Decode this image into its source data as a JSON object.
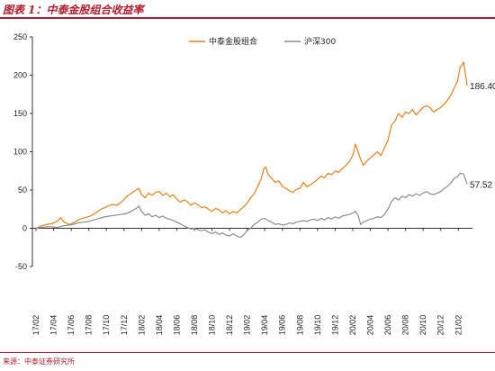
{
  "header": {
    "title": "图表 1：中泰金股组合收益率"
  },
  "footer": {
    "source": "来源：中泰证券研究所"
  },
  "chart_data": {
    "type": "line",
    "title": "图表 1：中泰金股组合收益率",
    "xlabel": "",
    "ylabel": "",
    "ylim": [
      -50,
      250
    ],
    "yticks": [
      -50,
      0,
      50,
      100,
      150,
      200,
      250
    ],
    "grid": false,
    "legend_position": "top-center",
    "x_tick_labels": [
      "17/02",
      "17/04",
      "17/06",
      "17/08",
      "17/10",
      "17/12",
      "18/02",
      "18/04",
      "18/06",
      "18/08",
      "18/10",
      "18/12",
      "19/02",
      "19/04",
      "19/06",
      "19/08",
      "19/10",
      "19/12",
      "20/02",
      "20/04",
      "20/06",
      "20/08",
      "20/10",
      "20/12",
      "21/02"
    ],
    "series": [
      {
        "name": "中泰金股组合",
        "color": "#e8801a",
        "end_label": "186.40",
        "points": [
          [
            0,
            0
          ],
          [
            0.3,
            3
          ],
          [
            0.6,
            5
          ],
          [
            0.9,
            6
          ],
          [
            1.2,
            9
          ],
          [
            1.4,
            14
          ],
          [
            1.6,
            8
          ],
          [
            1.9,
            5
          ],
          [
            2.2,
            8
          ],
          [
            2.5,
            12
          ],
          [
            2.8,
            14
          ],
          [
            3.1,
            16
          ],
          [
            3.4,
            20
          ],
          [
            3.7,
            25
          ],
          [
            4.0,
            28
          ],
          [
            4.3,
            31
          ],
          [
            4.6,
            30
          ],
          [
            4.9,
            35
          ],
          [
            5.1,
            40
          ],
          [
            5.3,
            44
          ],
          [
            5.5,
            47
          ],
          [
            5.7,
            50
          ],
          [
            5.85,
            52
          ],
          [
            6.0,
            44
          ],
          [
            6.2,
            40
          ],
          [
            6.4,
            46
          ],
          [
            6.6,
            43
          ],
          [
            6.8,
            47
          ],
          [
            7.0,
            48
          ],
          [
            7.2,
            43
          ],
          [
            7.4,
            46
          ],
          [
            7.6,
            41
          ],
          [
            7.8,
            44
          ],
          [
            8.0,
            38
          ],
          [
            8.2,
            34
          ],
          [
            8.4,
            37
          ],
          [
            8.6,
            35
          ],
          [
            8.8,
            30
          ],
          [
            9.0,
            33
          ],
          [
            9.2,
            31
          ],
          [
            9.4,
            27
          ],
          [
            9.6,
            28
          ],
          [
            9.8,
            25
          ],
          [
            10.0,
            22
          ],
          [
            10.2,
            26
          ],
          [
            10.4,
            24
          ],
          [
            10.6,
            20
          ],
          [
            10.8,
            23
          ],
          [
            11.0,
            19
          ],
          [
            11.2,
            22
          ],
          [
            11.4,
            20
          ],
          [
            11.6,
            24
          ],
          [
            11.8,
            28
          ],
          [
            12.0,
            33
          ],
          [
            12.2,
            40
          ],
          [
            12.4,
            45
          ],
          [
            12.6,
            55
          ],
          [
            12.8,
            65
          ],
          [
            12.95,
            78
          ],
          [
            13.05,
            80
          ],
          [
            13.2,
            70
          ],
          [
            13.4,
            65
          ],
          [
            13.6,
            60
          ],
          [
            13.8,
            62
          ],
          [
            14.0,
            55
          ],
          [
            14.2,
            52
          ],
          [
            14.4,
            49
          ],
          [
            14.6,
            47
          ],
          [
            14.8,
            51
          ],
          [
            15.0,
            52
          ],
          [
            15.2,
            60
          ],
          [
            15.4,
            54
          ],
          [
            15.6,
            57
          ],
          [
            15.8,
            60
          ],
          [
            16.0,
            64
          ],
          [
            16.2,
            68
          ],
          [
            16.4,
            66
          ],
          [
            16.6,
            72
          ],
          [
            16.8,
            70
          ],
          [
            17.0,
            75
          ],
          [
            17.2,
            73
          ],
          [
            17.4,
            78
          ],
          [
            17.6,
            82
          ],
          [
            17.8,
            87
          ],
          [
            18.0,
            95
          ],
          [
            18.15,
            110
          ],
          [
            18.3,
            100
          ],
          [
            18.45,
            90
          ],
          [
            18.6,
            82
          ],
          [
            18.8,
            88
          ],
          [
            19.0,
            92
          ],
          [
            19.2,
            96
          ],
          [
            19.4,
            100
          ],
          [
            19.6,
            95
          ],
          [
            19.8,
            105
          ],
          [
            20.0,
            115
          ],
          [
            20.2,
            135
          ],
          [
            20.4,
            140
          ],
          [
            20.6,
            150
          ],
          [
            20.8,
            145
          ],
          [
            21.0,
            152
          ],
          [
            21.2,
            150
          ],
          [
            21.4,
            155
          ],
          [
            21.6,
            148
          ],
          [
            21.8,
            153
          ],
          [
            22.0,
            158
          ],
          [
            22.2,
            160
          ],
          [
            22.4,
            157
          ],
          [
            22.6,
            152
          ],
          [
            22.8,
            155
          ],
          [
            23.0,
            158
          ],
          [
            23.2,
            162
          ],
          [
            23.4,
            168
          ],
          [
            23.6,
            175
          ],
          [
            23.8,
            185
          ],
          [
            23.95,
            192
          ],
          [
            24.1,
            210
          ],
          [
            24.3,
            217
          ],
          [
            24.5,
            186.4
          ]
        ]
      },
      {
        "name": "沪深300",
        "color": "#8c8c8c",
        "end_label": "57.52",
        "points": [
          [
            0,
            0
          ],
          [
            0.3,
            1
          ],
          [
            0.6,
            2
          ],
          [
            0.9,
            2
          ],
          [
            1.2,
            1
          ],
          [
            1.5,
            3
          ],
          [
            1.8,
            4
          ],
          [
            2.1,
            5
          ],
          [
            2.4,
            7
          ],
          [
            2.7,
            8
          ],
          [
            3.0,
            9
          ],
          [
            3.3,
            11
          ],
          [
            3.6,
            13
          ],
          [
            3.9,
            15
          ],
          [
            4.2,
            16
          ],
          [
            4.5,
            17
          ],
          [
            4.8,
            18
          ],
          [
            5.1,
            19
          ],
          [
            5.4,
            22
          ],
          [
            5.7,
            26
          ],
          [
            5.85,
            29
          ],
          [
            6.0,
            22
          ],
          [
            6.2,
            17
          ],
          [
            6.4,
            19
          ],
          [
            6.6,
            15
          ],
          [
            6.8,
            17
          ],
          [
            7.0,
            14
          ],
          [
            7.2,
            16
          ],
          [
            7.4,
            13
          ],
          [
            7.6,
            12
          ],
          [
            7.8,
            10
          ],
          [
            8.0,
            8
          ],
          [
            8.2,
            6
          ],
          [
            8.4,
            3
          ],
          [
            8.6,
            1
          ],
          [
            8.8,
            -1
          ],
          [
            9.0,
            0
          ],
          [
            9.2,
            -2
          ],
          [
            9.4,
            -3
          ],
          [
            9.6,
            -2
          ],
          [
            9.8,
            -5
          ],
          [
            10.0,
            -7
          ],
          [
            10.2,
            -5
          ],
          [
            10.4,
            -8
          ],
          [
            10.6,
            -6
          ],
          [
            10.8,
            -9
          ],
          [
            11.0,
            -10
          ],
          [
            11.2,
            -7
          ],
          [
            11.4,
            -10
          ],
          [
            11.6,
            -12
          ],
          [
            11.8,
            -9
          ],
          [
            12.0,
            -3
          ],
          [
            12.2,
            0
          ],
          [
            12.4,
            5
          ],
          [
            12.6,
            8
          ],
          [
            12.8,
            12
          ],
          [
            13.0,
            13
          ],
          [
            13.2,
            10
          ],
          [
            13.4,
            8
          ],
          [
            13.6,
            5
          ],
          [
            13.8,
            6
          ],
          [
            14.0,
            4
          ],
          [
            14.2,
            5
          ],
          [
            14.4,
            7
          ],
          [
            14.6,
            6
          ],
          [
            14.8,
            8
          ],
          [
            15.0,
            9
          ],
          [
            15.2,
            10
          ],
          [
            15.4,
            9
          ],
          [
            15.6,
            11
          ],
          [
            15.8,
            12
          ],
          [
            16.0,
            10
          ],
          [
            16.2,
            13
          ],
          [
            16.4,
            11
          ],
          [
            16.6,
            14
          ],
          [
            16.8,
            12
          ],
          [
            17.0,
            15
          ],
          [
            17.2,
            13
          ],
          [
            17.4,
            16
          ],
          [
            17.6,
            17
          ],
          [
            17.8,
            18
          ],
          [
            18.0,
            20
          ],
          [
            18.15,
            22
          ],
          [
            18.3,
            17
          ],
          [
            18.45,
            5
          ],
          [
            18.6,
            8
          ],
          [
            18.8,
            10
          ],
          [
            19.0,
            12
          ],
          [
            19.2,
            13
          ],
          [
            19.4,
            15
          ],
          [
            19.6,
            14
          ],
          [
            19.8,
            18
          ],
          [
            20.0,
            25
          ],
          [
            20.2,
            35
          ],
          [
            20.4,
            40
          ],
          [
            20.6,
            37
          ],
          [
            20.8,
            42
          ],
          [
            21.0,
            40
          ],
          [
            21.2,
            44
          ],
          [
            21.4,
            42
          ],
          [
            21.6,
            45
          ],
          [
            21.8,
            43
          ],
          [
            22.0,
            46
          ],
          [
            22.2,
            48
          ],
          [
            22.4,
            45
          ],
          [
            22.6,
            44
          ],
          [
            22.8,
            46
          ],
          [
            23.0,
            48
          ],
          [
            23.2,
            52
          ],
          [
            23.4,
            55
          ],
          [
            23.6,
            60
          ],
          [
            23.8,
            66
          ],
          [
            23.95,
            67
          ],
          [
            24.1,
            72
          ],
          [
            24.3,
            71
          ],
          [
            24.5,
            57.52
          ]
        ]
      }
    ]
  }
}
